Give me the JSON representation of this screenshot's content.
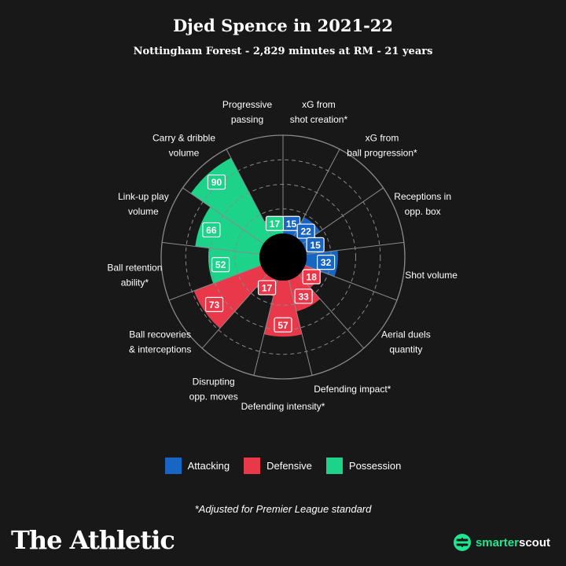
{
  "title": "Djed Spence in 2021-22",
  "subtitle": "Nottingham Forest - 2,829 minutes at RM - 21 years",
  "colors": {
    "Attacking": "#1766c4",
    "Defensive": "#e8384a",
    "Possession": "#1cd389",
    "background": "#181818",
    "grid": "#8a8a8a",
    "label": "#ffffff"
  },
  "chart_data": {
    "type": "polar-bar",
    "title": "Djed Spence in 2021-22",
    "rlim": [
      0,
      100
    ],
    "gridlines": [
      25,
      50,
      75,
      100
    ],
    "metrics": [
      {
        "label": "xG from\nshot creation*",
        "value": 15,
        "category": "Attacking"
      },
      {
        "label": "xG from\nball progression*",
        "value": 22,
        "category": "Attacking"
      },
      {
        "label": "Receptions in\nopp. box",
        "value": 15,
        "category": "Attacking"
      },
      {
        "label": "Shot volume",
        "value": 32,
        "category": "Attacking"
      },
      {
        "label": "Aerial duels\nquantity",
        "value": 18,
        "category": "Defensive"
      },
      {
        "label": "Defending impact*",
        "value": 33,
        "category": "Defensive"
      },
      {
        "label": "Defending intensity*",
        "value": 57,
        "category": "Defensive"
      },
      {
        "label": "Disrupting\nopp. moves",
        "value": 17,
        "category": "Defensive"
      },
      {
        "label": "Ball recoveries\n& interceptions",
        "value": 73,
        "category": "Defensive"
      },
      {
        "label": "Ball retention\nability*",
        "value": 52,
        "category": "Possession"
      },
      {
        "label": "Link-up play\nvolume",
        "value": 66,
        "category": "Possession"
      },
      {
        "label": "Carry & dribble\nvolume",
        "value": 90,
        "category": "Possession"
      },
      {
        "label": "Progressive\npassing",
        "value": 17,
        "category": "Possession"
      }
    ]
  },
  "legend": [
    {
      "name": "Attacking"
    },
    {
      "name": "Defensive"
    },
    {
      "name": "Possession"
    }
  ],
  "footnote": "*Adjusted for Premier League standard",
  "brand": "The Athletic",
  "scout": {
    "part1": "smarter",
    "part2": "scout"
  }
}
